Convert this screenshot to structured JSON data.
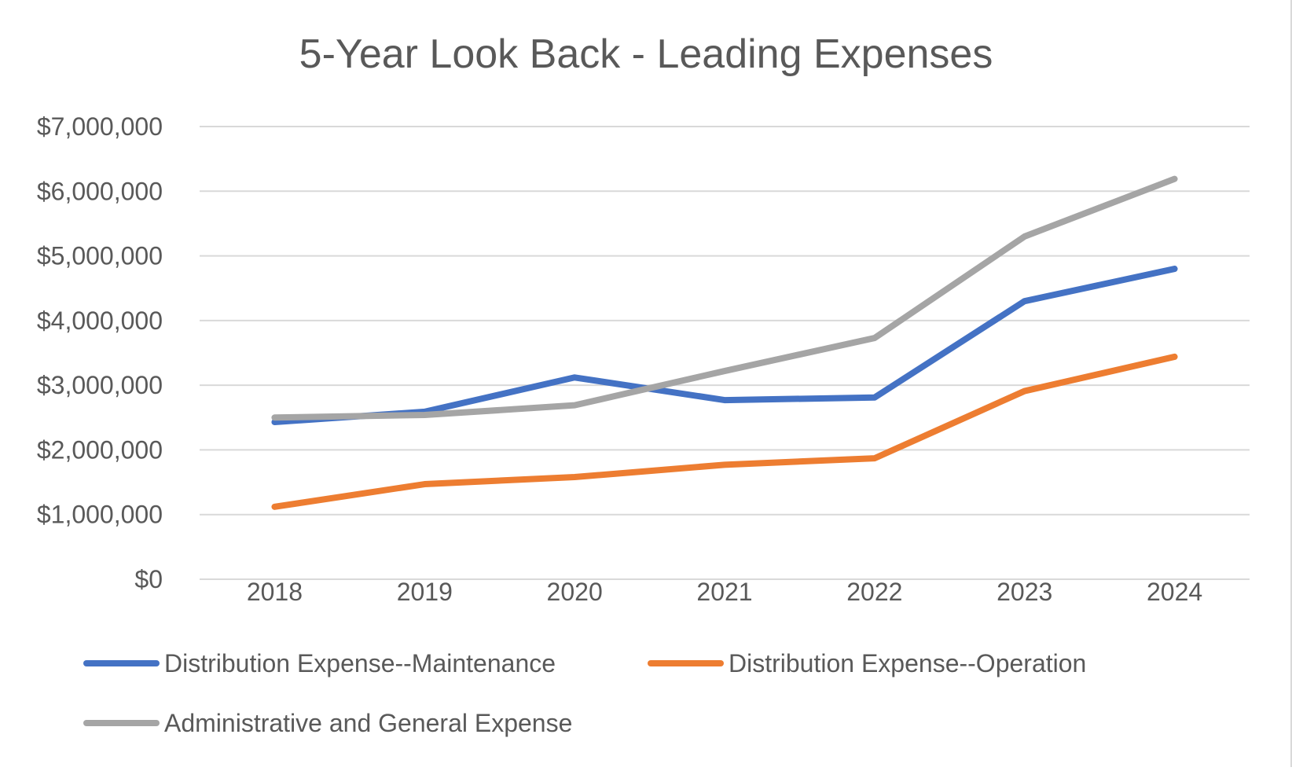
{
  "chart_data": {
    "type": "line",
    "title": "5-Year Look Back - Leading Expenses",
    "xlabel": "",
    "ylabel": "",
    "categories": [
      "2018",
      "2019",
      "2020",
      "2021",
      "2022",
      "2023",
      "2024"
    ],
    "ylim": [
      0,
      7000000
    ],
    "yticks": [
      0,
      1000000,
      2000000,
      3000000,
      4000000,
      5000000,
      6000000,
      7000000
    ],
    "ytick_labels": [
      "$0",
      "$1,000,000",
      "$2,000,000",
      "$3,000,000",
      "$4,000,000",
      "$5,000,000",
      "$6,000,000",
      "$7,000,000"
    ],
    "grid": true,
    "legend_position": "bottom",
    "series": [
      {
        "name": "Distribution Expense--Maintenance",
        "color": "#4472C4",
        "values": [
          2430000,
          2590000,
          3120000,
          2770000,
          2810000,
          4300000,
          4800000
        ]
      },
      {
        "name": "Distribution Expense--Operation",
        "color": "#ED7D31",
        "values": [
          1120000,
          1470000,
          1580000,
          1770000,
          1870000,
          2910000,
          3440000
        ]
      },
      {
        "name": "Administrative and General Expense",
        "color": "#A5A5A5",
        "values": [
          2500000,
          2540000,
          2690000,
          3220000,
          3730000,
          5300000,
          6190000
        ]
      }
    ]
  }
}
